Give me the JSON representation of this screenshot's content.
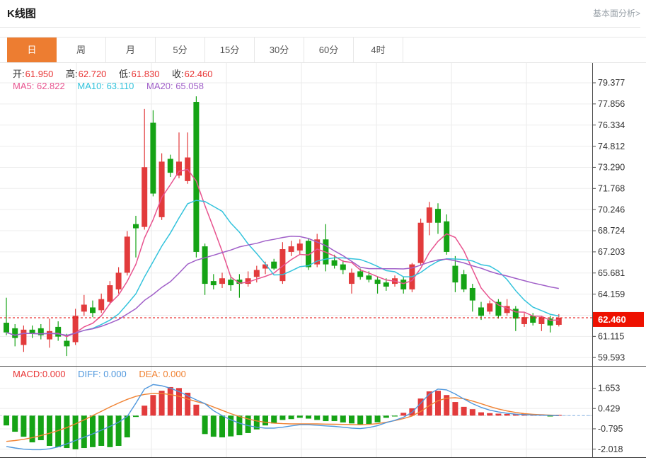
{
  "header": {
    "title": "K线图",
    "analysis_link": "基本面分析>"
  },
  "tabs": [
    {
      "id": "day",
      "label": "日",
      "active": true
    },
    {
      "id": "week",
      "label": "周",
      "active": false
    },
    {
      "id": "month",
      "label": "月",
      "active": false
    },
    {
      "id": "5min",
      "label": "5分",
      "active": false
    },
    {
      "id": "15min",
      "label": "15分",
      "active": false
    },
    {
      "id": "30min",
      "label": "30分",
      "active": false
    },
    {
      "id": "60min",
      "label": "60分",
      "active": false
    },
    {
      "id": "4hour",
      "label": "4时",
      "active": false
    }
  ],
  "legend_ohlc": {
    "items": [
      {
        "label": "开:",
        "value": "61.950"
      },
      {
        "label": "高:",
        "value": "62.720"
      },
      {
        "label": "低:",
        "value": "61.830"
      },
      {
        "label": "收:",
        "value": "62.460"
      }
    ]
  },
  "legend_ma": {
    "items": [
      {
        "label": "MA5:",
        "value": "62.822",
        "color": "#e8538f"
      },
      {
        "label": "MA10:",
        "value": "63.110",
        "color": "#33c3dc"
      },
      {
        "label": "MA20:",
        "value": "65.058",
        "color": "#a05fc8"
      }
    ]
  },
  "legend_macd": {
    "items": [
      {
        "label": "MACD:",
        "value": "0.000",
        "color": "#e83535"
      },
      {
        "label": "DIFF:",
        "value": "0.000",
        "color": "#4f97dd"
      },
      {
        "label": "DEA:",
        "value": "0.000",
        "color": "#f08232"
      }
    ]
  },
  "chart_data": {
    "type": "candlestick",
    "title": "K线图 daily candlestick with MA5/MA10/MA20 and MACD",
    "legend_position": "top-left",
    "grid": true,
    "colors": {
      "up": "#e23b3c",
      "down": "#15a315",
      "ma5": "#e8538f",
      "ma10": "#33c3dc",
      "ma20": "#a05fc8",
      "diff": "#4f97dd",
      "dea": "#f08232",
      "current_price_line": "#e60000",
      "badge_bg": "#ee1100",
      "badge_text": "#ffffff",
      "grid_line": "#ededed",
      "vgrid_line": "#e9e9e9",
      "axis_line": "#4d4d4d",
      "tick_text": "#333333"
    },
    "price_axis_ticks": [
      {
        "value": 79.377,
        "label": "79.377"
      },
      {
        "value": 77.856,
        "label": "77.856"
      },
      {
        "value": 76.334,
        "label": "76.334"
      },
      {
        "value": 74.812,
        "label": "74.812"
      },
      {
        "value": 73.29,
        "label": "73.290"
      },
      {
        "value": 71.768,
        "label": "71.768"
      },
      {
        "value": 70.246,
        "label": "70.246"
      },
      {
        "value": 68.724,
        "label": "68.724"
      },
      {
        "value": 67.203,
        "label": "67.203"
      },
      {
        "value": 65.681,
        "label": "65.681"
      },
      {
        "value": 64.159,
        "label": "64.159"
      },
      {
        "value": 62.637,
        "label": null
      },
      {
        "value": 61.115,
        "label": "61.115"
      },
      {
        "value": 59.593,
        "label": "59.593"
      }
    ],
    "current_price": {
      "value": 62.46,
      "label": "62.460"
    },
    "ohlc_last": {
      "open": 61.95,
      "high": 62.72,
      "low": 61.83,
      "close": 62.46
    },
    "ma_values": {
      "ma5": 62.822,
      "ma10": 63.11,
      "ma20": 65.058
    },
    "candles_ohlc": [
      [
        62.1,
        63.9,
        61.2,
        61.4
      ],
      [
        61.7,
        62.0,
        60.4,
        61.0
      ],
      [
        60.5,
        61.9,
        60.0,
        61.6
      ],
      [
        61.6,
        61.9,
        61.0,
        61.3
      ],
      [
        61.7,
        62.0,
        60.9,
        61.2
      ],
      [
        60.9,
        62.4,
        60.3,
        61.5
      ],
      [
        61.8,
        62.2,
        60.8,
        61.1
      ],
      [
        60.8,
        61.3,
        59.7,
        60.4
      ],
      [
        60.7,
        63.1,
        60.5,
        62.6
      ],
      [
        62.9,
        64.1,
        62.6,
        63.4
      ],
      [
        63.2,
        63.7,
        62.5,
        62.8
      ],
      [
        63.0,
        64.2,
        62.8,
        63.8
      ],
      [
        63.6,
        65.1,
        63.4,
        64.8
      ],
      [
        64.5,
        66.1,
        64.2,
        65.7
      ],
      [
        65.7,
        68.7,
        65.5,
        68.3
      ],
      [
        69.2,
        69.8,
        66.8,
        68.9
      ],
      [
        69.0,
        77.5,
        68.8,
        73.3
      ],
      [
        76.5,
        77.4,
        71.2,
        71.4
      ],
      [
        69.7,
        74.3,
        69.5,
        73.7
      ],
      [
        73.9,
        74.2,
        72.6,
        72.9
      ],
      [
        72.7,
        75.8,
        72.5,
        73.7
      ],
      [
        72.3,
        75.8,
        72.1,
        74.0
      ],
      [
        78.0,
        78.4,
        66.8,
        67.2
      ],
      [
        67.6,
        67.8,
        64.1,
        64.9
      ],
      [
        65.1,
        65.6,
        64.5,
        64.8
      ],
      [
        64.9,
        65.7,
        64.6,
        65.3
      ],
      [
        65.2,
        65.5,
        64.4,
        64.8
      ],
      [
        65.2,
        65.6,
        63.9,
        64.9
      ],
      [
        64.9,
        65.8,
        64.7,
        65.3
      ],
      [
        65.4,
        66.2,
        65.0,
        65.9
      ],
      [
        66.0,
        66.5,
        65.6,
        66.3
      ],
      [
        66.5,
        66.7,
        65.9,
        66.0
      ],
      [
        65.1,
        67.9,
        64.9,
        67.4
      ],
      [
        67.2,
        68.0,
        66.9,
        67.6
      ],
      [
        67.3,
        68.1,
        67.0,
        67.8
      ],
      [
        68.0,
        68.2,
        65.9,
        66.1
      ],
      [
        66.3,
        68.5,
        66.1,
        68.1
      ],
      [
        68.1,
        69.2,
        65.8,
        66.3
      ],
      [
        66.6,
        67.0,
        66.0,
        66.2
      ],
      [
        66.3,
        66.6,
        65.6,
        65.9
      ],
      [
        64.9,
        66.0,
        64.2,
        65.7
      ],
      [
        65.8,
        66.0,
        65.2,
        65.4
      ],
      [
        65.5,
        65.8,
        65.0,
        65.2
      ],
      [
        65.2,
        65.4,
        64.2,
        64.9
      ],
      [
        65.0,
        65.3,
        64.4,
        64.7
      ],
      [
        64.9,
        65.5,
        64.7,
        65.3
      ],
      [
        65.2,
        65.4,
        64.2,
        64.5
      ],
      [
        64.5,
        66.4,
        64.3,
        66.3
      ],
      [
        66.4,
        69.6,
        66.2,
        69.3
      ],
      [
        69.3,
        70.8,
        68.4,
        70.4
      ],
      [
        70.3,
        70.7,
        68.5,
        69.3
      ],
      [
        69.4,
        69.9,
        67.0,
        67.2
      ],
      [
        66.2,
        66.9,
        64.3,
        65.0
      ],
      [
        65.6,
        65.9,
        64.3,
        64.5
      ],
      [
        64.6,
        64.9,
        62.9,
        63.7
      ],
      [
        63.2,
        63.6,
        62.3,
        62.6
      ],
      [
        62.9,
        63.7,
        62.7,
        63.5
      ],
      [
        63.6,
        63.8,
        62.4,
        62.6
      ],
      [
        62.8,
        63.8,
        62.6,
        63.3
      ],
      [
        63.1,
        63.3,
        61.5,
        62.4
      ],
      [
        62.0,
        62.8,
        61.8,
        62.5
      ],
      [
        62.6,
        62.8,
        61.9,
        62.1
      ],
      [
        62.0,
        62.6,
        61.5,
        62.5
      ],
      [
        62.4,
        62.6,
        61.4,
        61.9
      ],
      [
        61.95,
        62.72,
        61.83,
        62.46
      ]
    ],
    "macd": {
      "axis_ticks": [
        {
          "value": 1.653,
          "label": "1.653"
        },
        {
          "value": 0.429,
          "label": "0.429"
        },
        {
          "value": -0.795,
          "label": "-0.795"
        },
        {
          "value": -2.018,
          "label": "-2.018"
        }
      ],
      "bars": [
        -0.59,
        -0.97,
        -1.27,
        -1.61,
        -1.48,
        -1.82,
        -1.9,
        -1.95,
        -2.03,
        -1.95,
        -1.9,
        -1.82,
        -1.9,
        -1.82,
        -1.31,
        -0.08,
        0.6,
        1.24,
        1.5,
        1.72,
        1.66,
        1.38,
        0.66,
        -1.11,
        -1.27,
        -1.31,
        -1.25,
        -1.18,
        -1.05,
        -0.83,
        -0.59,
        -0.47,
        -0.26,
        -0.21,
        -0.13,
        -0.18,
        -0.26,
        -0.33,
        -0.33,
        -0.41,
        -0.47,
        -0.55,
        -0.5,
        -0.4,
        -0.13,
        -0.05,
        0.17,
        0.44,
        1.03,
        1.46,
        1.5,
        1.24,
        0.82,
        0.53,
        0.39,
        0.2,
        0.15,
        0.12,
        0.1,
        0.1,
        0.12,
        0.08,
        0.08,
        -0.05,
        0.05
      ],
      "diff": [
        -1.86,
        -1.95,
        -2.02,
        -2.05,
        -2.05,
        -2.0,
        -1.88,
        -1.7,
        -1.5,
        -1.3,
        -1.1,
        -0.88,
        -0.65,
        -0.4,
        -0.05,
        0.75,
        1.6,
        1.87,
        1.8,
        1.65,
        1.45,
        1.2,
        0.95,
        0.72,
        0.3,
        0.0,
        -0.25,
        -0.45,
        -0.6,
        -0.7,
        -0.75,
        -0.75,
        -0.7,
        -0.62,
        -0.55,
        -0.55,
        -0.58,
        -0.62,
        -0.65,
        -0.7,
        -0.75,
        -0.78,
        -0.72,
        -0.6,
        -0.42,
        -0.28,
        -0.1,
        0.2,
        0.75,
        1.3,
        1.6,
        1.55,
        1.3,
        1.0,
        0.72,
        0.5,
        0.33,
        0.22,
        0.14,
        0.09,
        0.06,
        0.04,
        0.03,
        0.01,
        0.0
      ],
      "dea": [
        -1.55,
        -1.5,
        -1.43,
        -1.33,
        -1.2,
        -1.06,
        -0.9,
        -0.72,
        -0.5,
        -0.26,
        0.0,
        0.26,
        0.52,
        0.76,
        0.98,
        1.16,
        1.28,
        1.34,
        1.33,
        1.27,
        1.16,
        1.0,
        0.85,
        0.72,
        0.52,
        0.32,
        0.12,
        -0.05,
        -0.2,
        -0.32,
        -0.4,
        -0.45,
        -0.48,
        -0.5,
        -0.5,
        -0.5,
        -0.5,
        -0.51,
        -0.52,
        -0.53,
        -0.54,
        -0.55,
        -0.53,
        -0.48,
        -0.4,
        -0.3,
        -0.18,
        -0.02,
        0.25,
        0.6,
        0.9,
        1.05,
        1.08,
        1.02,
        0.88,
        0.72,
        0.55,
        0.4,
        0.28,
        0.19,
        0.12,
        0.08,
        0.05,
        0.03,
        0.01
      ]
    }
  }
}
